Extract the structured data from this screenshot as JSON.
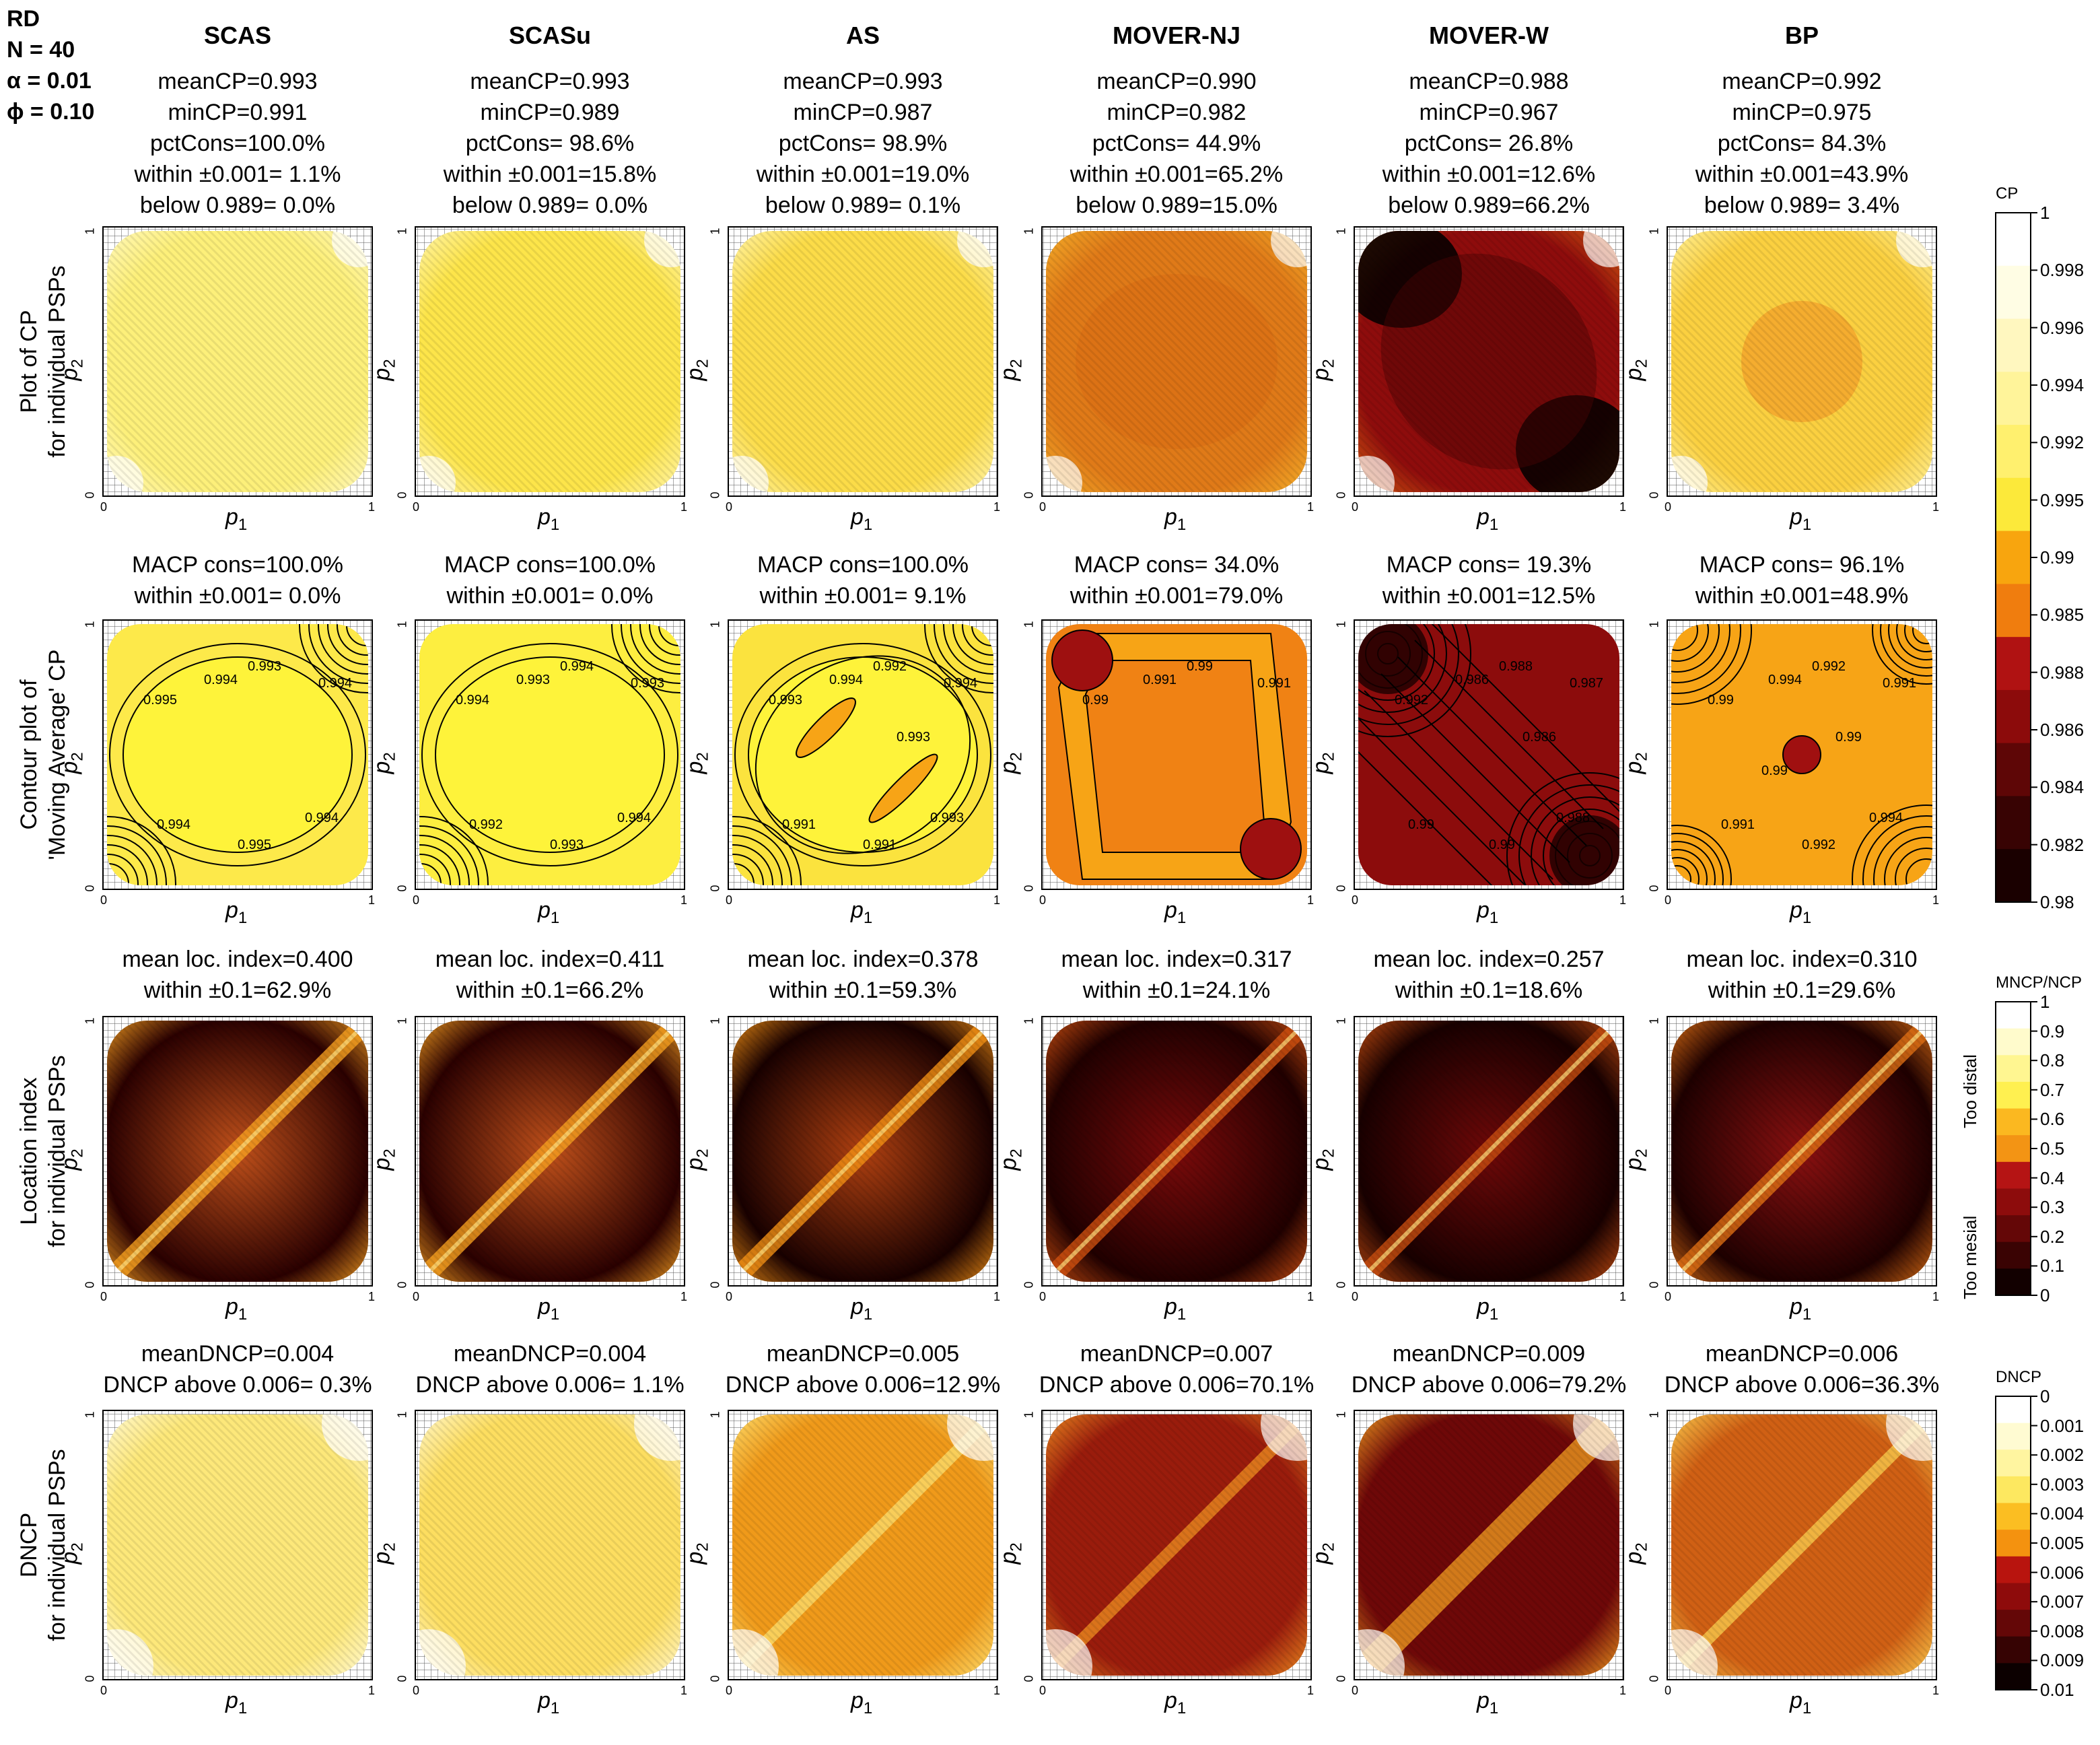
{
  "header": {
    "line1": "RD",
    "line2": "N = 40",
    "line3": "α = 0.01",
    "line4": "ϕ = 0.10"
  },
  "methods": [
    "SCAS",
    "SCASu",
    "AS",
    "MOVER-NJ",
    "MOVER-W",
    "BP"
  ],
  "row_labels": [
    [
      "Plot of CP",
      "for individual PSPs"
    ],
    [
      "Contour plot of",
      "'Moving Average' CP"
    ],
    [
      "Location index",
      "for individual PSPs"
    ],
    [
      "DNCP",
      "for individual PSPs"
    ]
  ],
  "axes": {
    "x_label": "p",
    "x_sub": "1",
    "y_label": "p",
    "y_sub": "2",
    "tick_min": "0",
    "tick_max": "1"
  },
  "row1_stats": [
    [
      "meanCP=0.993",
      "minCP=0.991",
      "pctCons=100.0%",
      "within ±0.001= 1.1%",
      "below 0.989= 0.0%"
    ],
    [
      "meanCP=0.993",
      "minCP=0.989",
      "pctCons= 98.6%",
      "within ±0.001=15.8%",
      "below 0.989= 0.0%"
    ],
    [
      "meanCP=0.993",
      "minCP=0.987",
      "pctCons= 98.9%",
      "within ±0.001=19.0%",
      "below 0.989= 0.1%"
    ],
    [
      "meanCP=0.990",
      "minCP=0.982",
      "pctCons= 44.9%",
      "within ±0.001=65.2%",
      "below 0.989=15.0%"
    ],
    [
      "meanCP=0.988",
      "minCP=0.967",
      "pctCons= 26.8%",
      "within ±0.001=12.6%",
      "below 0.989=66.2%"
    ],
    [
      "meanCP=0.992",
      "minCP=0.975",
      "pctCons= 84.3%",
      "within ±0.001=43.9%",
      "below 0.989= 3.4%"
    ]
  ],
  "row2_stats": [
    [
      "MACP cons=100.0%",
      "within ±0.001= 0.0%"
    ],
    [
      "MACP cons=100.0%",
      "within ±0.001= 0.0%"
    ],
    [
      "MACP cons=100.0%",
      "within ±0.001= 9.1%"
    ],
    [
      "MACP cons= 34.0%",
      "within ±0.001=79.0%"
    ],
    [
      "MACP cons= 19.3%",
      "within ±0.001=12.5%"
    ],
    [
      "MACP cons= 96.1%",
      "within ±0.001=48.9%"
    ]
  ],
  "row3_stats": [
    [
      "mean loc. index=0.400",
      "within ±0.1=62.9%"
    ],
    [
      "mean loc. index=0.411",
      "within ±0.1=66.2%"
    ],
    [
      "mean loc. index=0.378",
      "within ±0.1=59.3%"
    ],
    [
      "mean loc. index=0.317",
      "within ±0.1=24.1%"
    ],
    [
      "mean loc. index=0.257",
      "within ±0.1=18.6%"
    ],
    [
      "mean loc. index=0.310",
      "within ±0.1=29.6%"
    ]
  ],
  "row4_stats": [
    [
      "meanDNCP=0.004",
      "DNCP above 0.006= 0.3%"
    ],
    [
      "meanDNCP=0.004",
      "DNCP above 0.006= 1.1%"
    ],
    [
      "meanDNCP=0.005",
      "DNCP above 0.006=12.9%"
    ],
    [
      "meanDNCP=0.007",
      "DNCP above 0.006=70.1%"
    ],
    [
      "meanDNCP=0.009",
      "DNCP above 0.006=79.2%"
    ],
    [
      "meanDNCP=0.006",
      "DNCP above 0.006=36.3%"
    ]
  ],
  "contour_labels": [
    [
      "0.995",
      "0.994",
      "0.993",
      "0.994",
      "0.994",
      "0.995",
      "0.994"
    ],
    [
      "0.994",
      "0.993",
      "0.994",
      "0.993",
      "0.992",
      "0.993",
      "0.994"
    ],
    [
      "0.993",
      "0.994",
      "0.992",
      "0.994",
      "0.991",
      "0.991",
      "0.993",
      "0.993"
    ],
    [
      "0.99",
      "0.991",
      "0.99",
      "0.991"
    ],
    [
      "0.992",
      "0.986",
      "0.988",
      "0.987",
      "0.99",
      "0.99",
      "0.988",
      "0.986"
    ],
    [
      "0.99",
      "0.994",
      "0.992",
      "0.991",
      "0.991",
      "0.992",
      "0.994",
      "0.99",
      "0.99"
    ]
  ],
  "colorbars": {
    "cp": {
      "title": "CP",
      "ticks": [
        "1",
        "0.998",
        "0.996",
        "0.994",
        "0.992",
        "0.995",
        "0.99",
        "0.985",
        "0.988",
        "0.986",
        "0.984",
        "0.982",
        "0.98"
      ]
    },
    "loc": {
      "title": "MNCP/NCP",
      "ticks": [
        "1",
        "0.9",
        "0.8",
        "0.7",
        "0.6",
        "0.5",
        "0.4",
        "0.3",
        "0.2",
        "0.1",
        "0"
      ],
      "side_top": "Too distal",
      "side_bottom": "Too mesial"
    },
    "dncp": {
      "title": "DNCP",
      "ticks": [
        "0",
        "0.001",
        "0.002",
        "0.003",
        "0.004",
        "0.005",
        "0.006",
        "0.007",
        "0.008",
        "0.009",
        "0.01"
      ]
    }
  },
  "chart_data": {
    "type": "heatmap",
    "panels": "4 rows x 6 methods, each a heat map over p1 in [0,1] (x) and p2 in [0,1] (y)",
    "xlim": [
      0,
      1
    ],
    "ylim": [
      0,
      1
    ],
    "rows": [
      {
        "metric": "CP",
        "range": [
          0.98,
          1
        ]
      },
      {
        "metric": "Moving Average CP (contours)",
        "range": [
          0.98,
          1
        ]
      },
      {
        "metric": "Location index MNCP/NCP",
        "range": [
          0,
          1
        ]
      },
      {
        "metric": "DNCP",
        "range": [
          0,
          0.01
        ]
      }
    ]
  }
}
